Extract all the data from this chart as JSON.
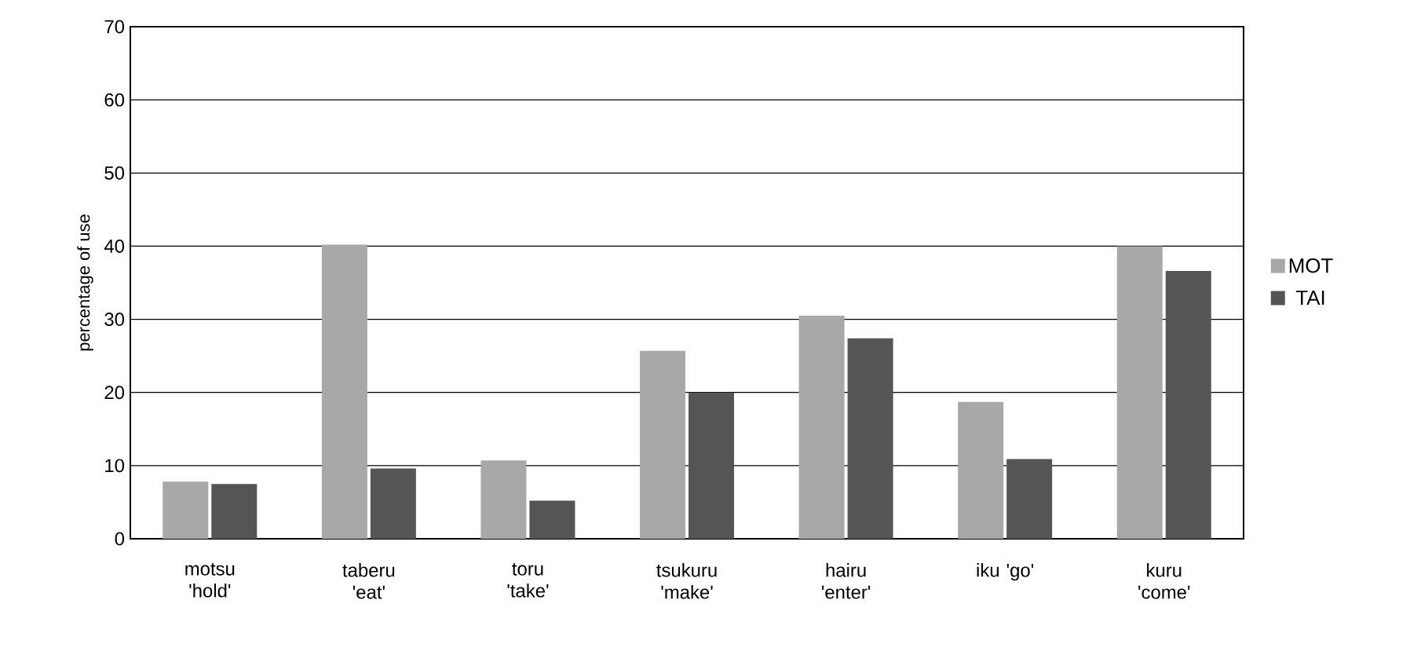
{
  "chart_data": {
    "type": "bar",
    "ylabel": "percentage of use",
    "categories": [
      "motsu 'hold'",
      "taberu 'eat'",
      "toru 'take'",
      "tsukuru 'make'",
      "hairu 'enter'",
      "iku 'go'",
      "kuru 'come'"
    ],
    "series": [
      {
        "name": "MOT",
        "color": "#a8a8a8",
        "values": [
          7.8,
          40.2,
          10.7,
          25.7,
          30.5,
          18.7,
          40
        ]
      },
      {
        "name": "TAI",
        "color": "#555555",
        "values": [
          7.5,
          9.6,
          5.2,
          20,
          27.4,
          10.9,
          36.6
        ]
      }
    ],
    "ylim": [
      0,
      70
    ],
    "yticks": [
      0,
      10,
      20,
      30,
      40,
      50,
      60,
      70
    ],
    "grid": "y",
    "legend": "right"
  }
}
